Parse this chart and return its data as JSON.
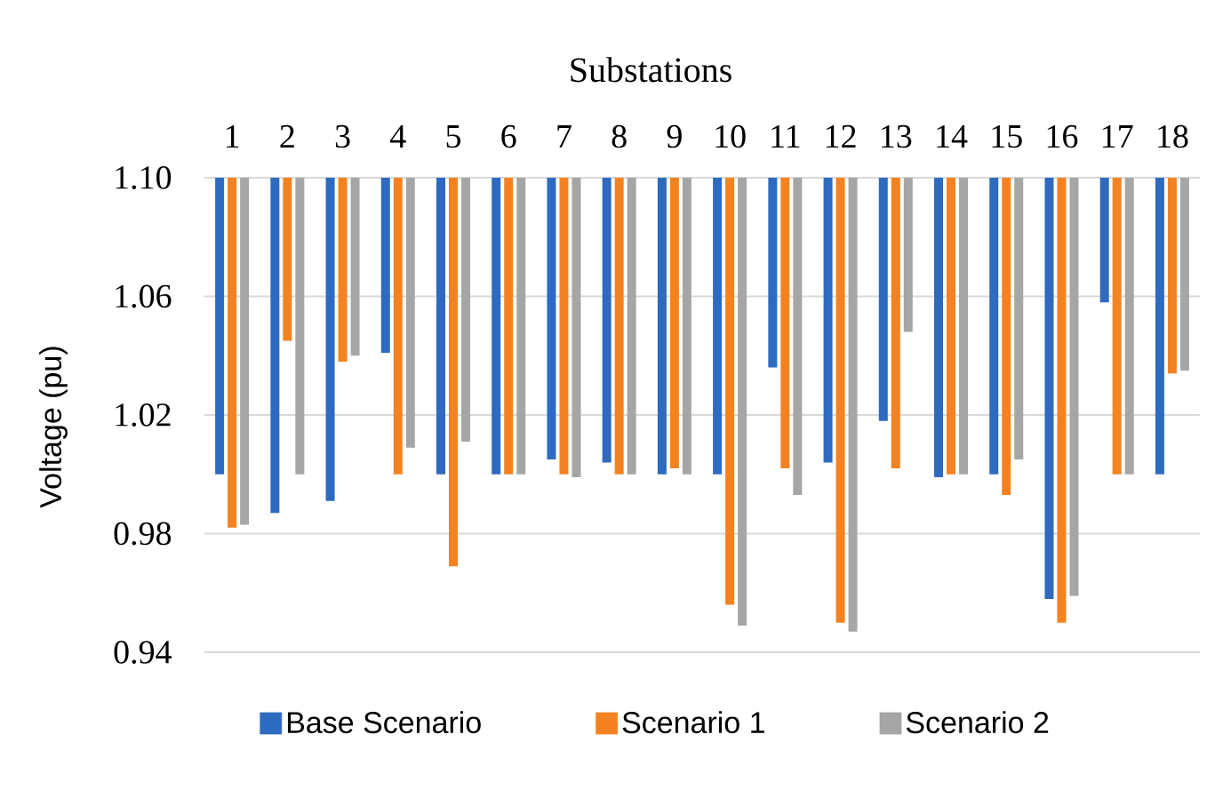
{
  "chart_data": {
    "type": "bar",
    "xlabel": "Substations",
    "ylabel": "Voltage (pu)",
    "categories": [
      "1",
      "2",
      "3",
      "4",
      "5",
      "6",
      "7",
      "8",
      "9",
      "10",
      "11",
      "12",
      "13",
      "14",
      "15",
      "16",
      "17",
      "18"
    ],
    "series": [
      {
        "name": "Base Scenario",
        "color": "#2e6ac0",
        "base": [
          1.1,
          1.1,
          1.1,
          1.1,
          1.1,
          1.1,
          1.1,
          1.1,
          1.1,
          1.1,
          1.1,
          1.1,
          1.1,
          1.1,
          1.1,
          1.1,
          1.1,
          1.1
        ],
        "values": [
          -0.1,
          -0.113,
          -0.109,
          -0.059,
          -0.1,
          -0.1,
          -0.095,
          -0.096,
          -0.1,
          -0.1,
          -0.064,
          -0.096,
          -0.082,
          -0.101,
          -0.1,
          -0.142,
          -0.042,
          -0.1
        ]
      },
      {
        "name": "Scenario 1",
        "color": "#f58220",
        "base": [
          1.1,
          1.1,
          1.1,
          1.1,
          1.1,
          1.1,
          1.1,
          1.1,
          1.1,
          1.1,
          1.1,
          1.1,
          1.1,
          1.1,
          1.1,
          1.1,
          1.1,
          1.1
        ],
        "values": [
          -0.118,
          -0.055,
          -0.062,
          -0.1,
          -0.131,
          -0.1,
          -0.1,
          -0.1,
          -0.098,
          -0.144,
          -0.098,
          -0.15,
          -0.098,
          -0.1,
          -0.107,
          -0.15,
          -0.1,
          -0.066
        ]
      },
      {
        "name": "Scenario 2",
        "color": "#a6a6a6",
        "base": [
          1.1,
          1.1,
          1.1,
          1.1,
          1.1,
          1.1,
          1.1,
          1.1,
          1.1,
          1.1,
          1.1,
          1.1,
          1.1,
          1.1,
          1.1,
          1.1,
          1.1,
          1.1
        ],
        "values": [
          -0.117,
          -0.1,
          -0.06,
          -0.091,
          -0.089,
          -0.1,
          -0.101,
          -0.1,
          -0.1,
          -0.151,
          -0.107,
          -0.153,
          -0.052,
          -0.1,
          -0.095,
          -0.141,
          -0.1,
          -0.065
        ]
      }
    ],
    "ylim": [
      0.94,
      1.1
    ],
    "yticks": [
      0.94,
      0.98,
      1.02,
      1.06,
      {
        "value": 1.1,
        "label": "1.10"
      }
    ],
    "grid": "y",
    "legend": "bottom"
  }
}
